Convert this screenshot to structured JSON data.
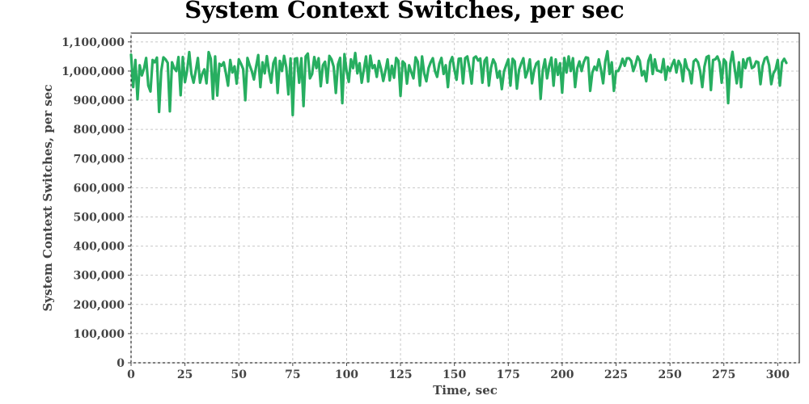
{
  "chart_data": {
    "type": "line",
    "title": "System Context Switches, per sec",
    "xlabel": "Time, sec",
    "ylabel": "System Context Switches, per sec",
    "xlim": [
      0,
      310
    ],
    "ylim": [
      0,
      1130000
    ],
    "x_ticks": [
      "0",
      "25",
      "50",
      "75",
      "100",
      "125",
      "150",
      "175",
      "200",
      "225",
      "250",
      "275",
      "300"
    ],
    "y_ticks": [
      "0",
      "100,000",
      "200,000",
      "300,000",
      "400,000",
      "500,000",
      "600,000",
      "700,000",
      "800,000",
      "900,000",
      "1,000,000",
      "1,100,000"
    ],
    "grid": true,
    "legend": "none",
    "colors": {
      "series": "#27ae60",
      "grid": "#c8c8c8",
      "frame": "#000000",
      "text": "#444444"
    },
    "series": [
      {
        "values": [
          1056000,
          945000,
          1038000,
          903000,
          1020000,
          985000,
          1008000,
          1045000,
          950000,
          930000,
          1038000,
          1030000,
          1046000,
          860000,
          1000000,
          1047000,
          1040000,
          1028000,
          862000,
          1030000,
          1010000,
          1000000,
          1048000,
          917000,
          1048000,
          962000,
          1002000,
          1065000,
          990000,
          960000,
          1000000,
          1045000,
          960000,
          990000,
          1006000,
          958000,
          1065000,
          1042000,
          905000,
          1050000,
          916000,
          1025000,
          1018000,
          1030000,
          992000,
          950000,
          1038000,
          995000,
          1016000,
          957000,
          1040000,
          1025000,
          1007000,
          900000,
          1045000,
          1020000,
          1000000,
          971000,
          1015000,
          1055000,
          945000,
          1030000,
          992000,
          1051000,
          1000000,
          960000,
          1027000,
          1045000,
          925000,
          1035000,
          1000000,
          1052000,
          1013000,
          920000,
          1043000,
          849000,
          1042000,
          1044000,
          960000,
          1044000,
          880000,
          1050000,
          1060000,
          975000,
          990000,
          1048000,
          1010000,
          1044000,
          948000,
          1020000,
          1032000,
          960000,
          1052000,
          1040000,
          1015000,
          925000,
          1023000,
          1045000,
          890000,
          1058000,
          1000000,
          963000,
          1040000,
          1010000,
          1062000,
          992000,
          1027000,
          960000,
          1005000,
          1050000,
          964000,
          1053000,
          1010000,
          1020000,
          980000,
          1035000,
          1007000,
          966000,
          1000000,
          1040000,
          968000,
          1018000,
          977000,
          1045000,
          1035000,
          915000,
          1033000,
          1025000,
          957000,
          1020000,
          996000,
          975000,
          1047000,
          1032000,
          950000,
          1050000,
          992000,
          965000,
          1010000,
          1030000,
          1044000,
          1000000,
          980000,
          1025000,
          1045000,
          990000,
          1020000,
          945000,
          1030000,
          1048000,
          1005000,
          970000,
          1042000,
          1043000,
          958000,
          1044000,
          1050000,
          1010000,
          957000,
          1045000,
          1050000,
          1036000,
          1043000,
          960000,
          1035000,
          1046000,
          950000,
          1012000,
          1040000,
          1025000,
          977000,
          1000000,
          938000,
          998000,
          1020000,
          1040000,
          950000,
          1042000,
          1033000,
          940000,
          1004000,
          1026000,
          1044000,
          978000,
          1000000,
          1040000,
          958000,
          1003000,
          1026000,
          1033000,
          905000,
          1003000,
          1040000,
          975000,
          1018000,
          1046000,
          950000,
          1040000,
          987000,
          1027000,
          926000,
          1045000,
          995000,
          1050000,
          1000000,
          1044000,
          945000,
          1010000,
          1033000,
          1000000,
          1030000,
          1047000,
          1045000,
          932000,
          995000,
          1015000,
          1003000,
          1040000,
          1005000,
          958000,
          1033000,
          1068000,
          990000,
          1030000,
          932000,
          1000000,
          1000000,
          1017000,
          1042000,
          1018000,
          1044000,
          1044000,
          1035000,
          1000000,
          1022000,
          1050000,
          1035000,
          985000,
          1000000,
          965000,
          1035000,
          1055000,
          990000,
          1040000,
          1002000,
          1000000,
          996000,
          1041000,
          970000,
          1015000,
          1000000,
          1022000,
          1038000,
          995000,
          1035000,
          1020000,
          965000,
          1040000,
          1010000,
          1000000,
          958000,
          1033000,
          1040000,
          1030000,
          1000000,
          945000,
          1015000,
          1048000,
          1052000,
          935000,
          1038000,
          1040000,
          1050000,
          1030000,
          960000,
          1040000,
          1030000,
          890000,
          1025000,
          1066000,
          1010000,
          958000,
          1030000,
          945000,
          1040000,
          1010000,
          1042000,
          1045000,
          1010000,
          1015000,
          1033000,
          1030000,
          955000,
          1018000,
          1043000,
          1048000,
          1020000,
          955000,
          992000,
          1005000,
          1038000,
          950000,
          1030000,
          1042000,
          1028000
        ]
      }
    ]
  }
}
